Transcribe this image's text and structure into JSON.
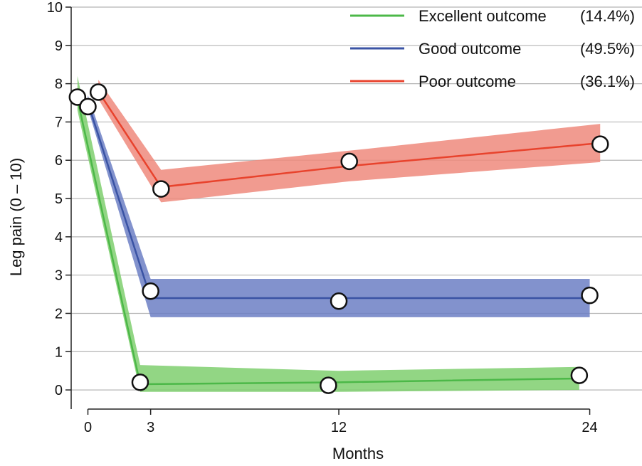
{
  "chart_data": {
    "type": "line",
    "xlabel": "Months",
    "ylabel": "Leg pain (0 – 10)",
    "xlim": [
      -0.8,
      26.5
    ],
    "ylim": [
      -0.5,
      10
    ],
    "xticks": [
      0,
      3,
      12,
      24
    ],
    "yticks": [
      0,
      1,
      2,
      3,
      4,
      5,
      6,
      7,
      8,
      9,
      10
    ],
    "grid": "horizontal",
    "legend_position": "top-right",
    "series": [
      {
        "name": "Excellent outcome",
        "pct": "(14.4%)",
        "color": "#4cb848",
        "band_color": "#7fcf6e",
        "x": [
          -0.5,
          2.5,
          12,
          23.5
        ],
        "y": [
          7.6,
          0.15,
          0.2,
          0.3
        ],
        "band_lower": [
          7.3,
          -0.05,
          -0.05,
          0.0
        ],
        "band_upper": [
          8.2,
          0.65,
          0.5,
          0.6
        ],
        "observed_x": [
          -0.5,
          2.5,
          11.5,
          23.5
        ],
        "observed_y": [
          7.65,
          0.2,
          0.12,
          0.38
        ]
      },
      {
        "name": "Good outcome",
        "pct": "(49.5%)",
        "color": "#3a53a4",
        "band_color": "#6c7fc4",
        "x": [
          0,
          3,
          24
        ],
        "y": [
          7.5,
          2.4,
          2.4
        ],
        "band_lower": [
          7.35,
          1.9,
          1.9
        ],
        "band_upper": [
          7.7,
          2.9,
          2.9
        ],
        "observed_x": [
          0,
          3,
          12,
          24
        ],
        "observed_y": [
          7.4,
          2.58,
          2.32,
          2.47
        ]
      },
      {
        "name": "Poor outcome",
        "pct": "(36.1%)",
        "color": "#e8432d",
        "band_color": "#ef8a7c",
        "x": [
          0.5,
          3.5,
          12.5,
          24.5
        ],
        "y": [
          7.8,
          5.3,
          5.85,
          6.45
        ],
        "band_lower": [
          7.6,
          4.9,
          5.45,
          5.95
        ],
        "band_upper": [
          8.1,
          5.75,
          6.25,
          6.95
        ],
        "observed_x": [
          0.5,
          3.5,
          12.5,
          24.5
        ],
        "observed_y": [
          7.78,
          5.25,
          5.97,
          6.42
        ]
      }
    ]
  }
}
